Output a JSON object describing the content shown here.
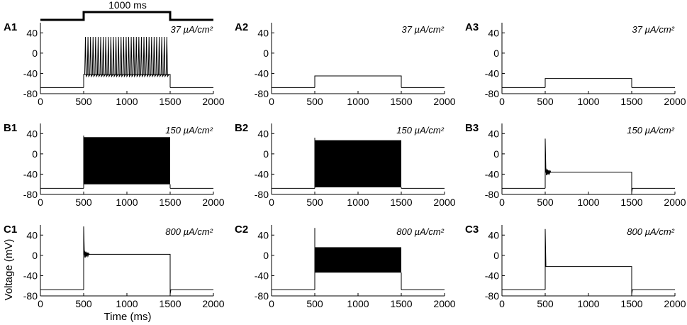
{
  "figure": {
    "stimulus_label": "1000 ms",
    "ylabel": "Voltage (mV)",
    "xlabel": "Time (ms)"
  },
  "chart_data": [
    {
      "panel": "A1",
      "current": "37 µA/cm²",
      "type": "line",
      "xlim": [
        0,
        2000
      ],
      "ylim": [
        -80,
        60
      ],
      "xticks": [
        "0",
        "500",
        "1000",
        "1500",
        "2000"
      ],
      "yticks": [
        "40",
        "0",
        "-40",
        "-80"
      ],
      "baseline": -68,
      "step": {
        "start": 500,
        "end": 1500,
        "level": -42
      },
      "spiking": {
        "mode": "spikes",
        "count": 33,
        "peak": 32,
        "trough": -46
      }
    },
    {
      "panel": "A2",
      "current": "37 µA/cm²",
      "type": "line",
      "xlim": [
        0,
        2000
      ],
      "ylim": [
        -80,
        60
      ],
      "xticks": [
        "0",
        "500",
        "1000",
        "1500",
        "2000"
      ],
      "yticks": [
        "40",
        "0",
        "-40",
        "-80"
      ],
      "baseline": -68,
      "step": {
        "start": 500,
        "end": 1500,
        "level": -45
      }
    },
    {
      "panel": "A3",
      "current": "37 µA/cm²",
      "type": "line",
      "xlim": [
        0,
        2000
      ],
      "ylim": [
        -80,
        60
      ],
      "xticks": [
        "0",
        "500",
        "1000",
        "1500",
        "2000"
      ],
      "yticks": [
        "40",
        "0",
        "-40",
        "-80"
      ],
      "baseline": -68,
      "step": {
        "start": 500,
        "end": 1500,
        "level": -50
      }
    },
    {
      "panel": "B1",
      "current": "150 µA/cm²",
      "type": "line",
      "xlim": [
        0,
        2000
      ],
      "ylim": [
        -80,
        60
      ],
      "xticks": [
        "0",
        "500",
        "1000",
        "1500",
        "2000"
      ],
      "yticks": [
        "40",
        "0",
        "-40",
        "-80"
      ],
      "baseline": -68,
      "step": {
        "start": 500,
        "end": 1500
      },
      "spiking": {
        "mode": "band",
        "high": 33,
        "low": -60,
        "initial_peak": 36
      }
    },
    {
      "panel": "B2",
      "current": "150 µA/cm²",
      "type": "line",
      "xlim": [
        0,
        2000
      ],
      "ylim": [
        -80,
        60
      ],
      "xticks": [
        "0",
        "500",
        "1000",
        "1500",
        "2000"
      ],
      "yticks": [
        "40",
        "0",
        "-40",
        "-80"
      ],
      "baseline": -68,
      "step": {
        "start": 500,
        "end": 1500
      },
      "spiking": {
        "mode": "band",
        "high": 27,
        "low": -66,
        "initial_peak": 32
      }
    },
    {
      "panel": "B3",
      "current": "150 µA/cm²",
      "type": "line",
      "xlim": [
        0,
        2000
      ],
      "ylim": [
        -80,
        60
      ],
      "xticks": [
        "0",
        "500",
        "1000",
        "1500",
        "2000"
      ],
      "yticks": [
        "40",
        "0",
        "-40",
        "-80"
      ],
      "baseline": -68,
      "step": {
        "start": 500,
        "end": 1500,
        "level": -36
      },
      "onset_spike": {
        "peak": 30,
        "ringing": true
      }
    },
    {
      "panel": "C1",
      "current": "800 µA/cm²",
      "type": "line",
      "xlim": [
        0,
        2000
      ],
      "ylim": [
        -80,
        60
      ],
      "xticks": [
        "0",
        "500",
        "1000",
        "1500",
        "2000"
      ],
      "yticks": [
        "40",
        "0",
        "-40",
        "-80"
      ],
      "baseline": -68,
      "step": {
        "start": 500,
        "end": 1500,
        "level": 2
      },
      "onset_spike": {
        "peak": 57,
        "ringing": true
      }
    },
    {
      "panel": "C2",
      "current": "800 µA/cm²",
      "type": "line",
      "xlim": [
        0,
        2000
      ],
      "ylim": [
        -80,
        60
      ],
      "xticks": [
        "0",
        "500",
        "1000",
        "1500",
        "2000"
      ],
      "yticks": [
        "40",
        "0",
        "-40",
        "-80"
      ],
      "baseline": -68,
      "step": {
        "start": 500,
        "end": 1500
      },
      "spiking": {
        "mode": "band",
        "high": 16,
        "low": -34,
        "initial_peak": 54
      }
    },
    {
      "panel": "C3",
      "current": "800 µA/cm²",
      "type": "line",
      "xlim": [
        0,
        2000
      ],
      "ylim": [
        -80,
        60
      ],
      "xticks": [
        "0",
        "500",
        "1000",
        "1500",
        "2000"
      ],
      "yticks": [
        "40",
        "0",
        "-40",
        "-80"
      ],
      "baseline": -68,
      "step": {
        "start": 500,
        "end": 1500,
        "level": -22
      },
      "onset_spike": {
        "peak": 52,
        "ringing": false
      }
    }
  ]
}
